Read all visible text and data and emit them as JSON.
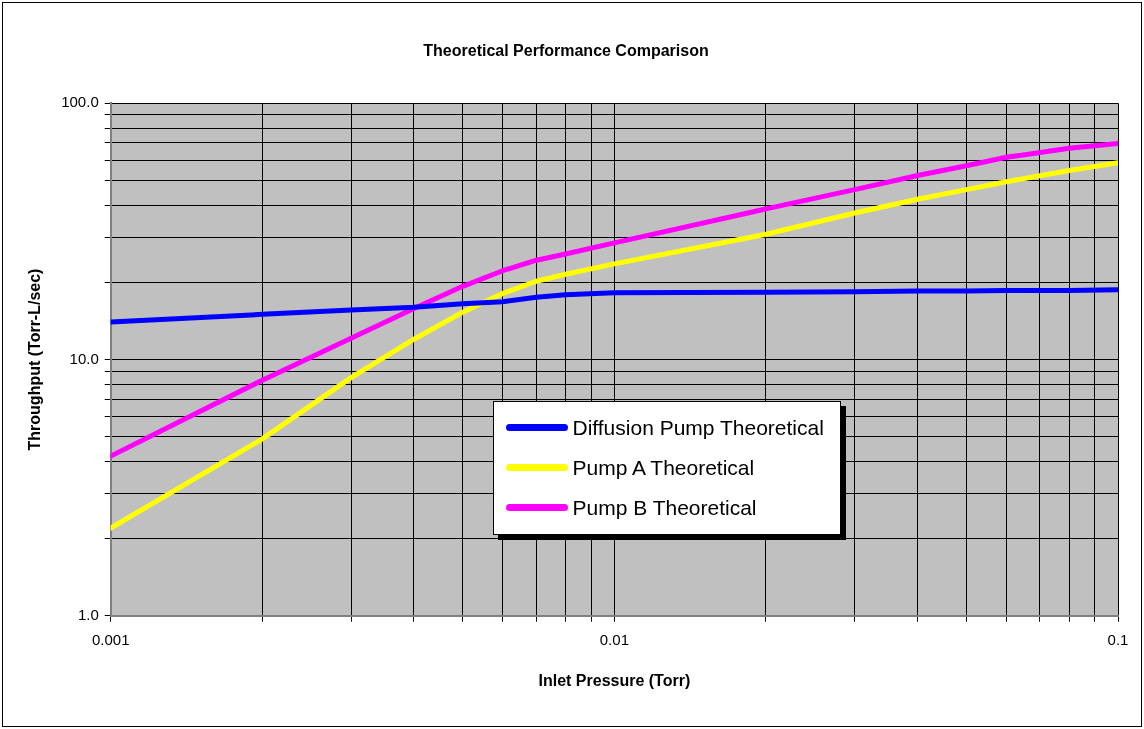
{
  "chart_data": {
    "type": "line",
    "title": "Theoretical Performance Comparison",
    "xlabel": "Inlet Pressure (Torr)",
    "ylabel": "Throughput (Torr-L/sec)",
    "log": "xy",
    "grid": true,
    "legend": "bottom",
    "xlim": [
      0.001,
      0.1
    ],
    "ylim": [
      1,
      100
    ],
    "xticks": [
      0.001,
      {
        "value": 0.002,
        "label": null
      },
      {
        "value": 0.003,
        "label": null
      },
      {
        "value": 0.004,
        "label": null
      },
      {
        "value": 0.005,
        "label": null
      },
      {
        "value": 0.006,
        "label": null
      },
      {
        "value": 0.007,
        "label": null
      },
      {
        "value": 0.008,
        "label": null
      },
      {
        "value": 0.009,
        "label": null
      },
      0.01,
      {
        "value": 0.02,
        "label": null
      },
      {
        "value": 0.03,
        "label": null
      },
      {
        "value": 0.04,
        "label": null
      },
      {
        "value": 0.05,
        "label": null
      },
      {
        "value": 0.06,
        "label": null
      },
      {
        "value": 0.07,
        "label": null
      },
      {
        "value": 0.08,
        "label": null
      },
      {
        "value": 0.09,
        "label": null
      },
      0.1
    ],
    "yticks": [
      {
        "value": 1,
        "label": "1.0"
      },
      {
        "value": 2,
        "label": null
      },
      {
        "value": 3,
        "label": null
      },
      {
        "value": 4,
        "label": null
      },
      {
        "value": 5,
        "label": null
      },
      {
        "value": 6,
        "label": null
      },
      {
        "value": 7,
        "label": null
      },
      {
        "value": 8,
        "label": null
      },
      {
        "value": 9,
        "label": null
      },
      {
        "value": 10,
        "label": "10.0"
      },
      {
        "value": 20,
        "label": null
      },
      {
        "value": 30,
        "label": null
      },
      {
        "value": 40,
        "label": null
      },
      {
        "value": 50,
        "label": null
      },
      {
        "value": 60,
        "label": null
      },
      {
        "value": 70,
        "label": null
      },
      {
        "value": 80,
        "label": null
      },
      {
        "value": 90,
        "label": null
      },
      {
        "value": 100,
        "label": "100.0"
      }
    ],
    "x": [
      0.001,
      0.002,
      0.003,
      0.004,
      0.005,
      0.006,
      0.007,
      0.008,
      0.01,
      0.02,
      0.03,
      0.04,
      0.05,
      0.06,
      0.08,
      0.1
    ],
    "series": [
      {
        "name": "Diffusion Pump Theoretical",
        "color": "#0000ff",
        "values": [
          14.0,
          15.0,
          15.6,
          16.0,
          16.5,
          16.8,
          17.5,
          17.9,
          18.2,
          18.3,
          18.4,
          18.5,
          18.5,
          18.6,
          18.6,
          18.7
        ]
      },
      {
        "name": "Pump A Theoretical",
        "color": "#ffff00",
        "values": [
          2.2,
          4.9,
          8.5,
          12.0,
          15.3,
          18.1,
          20.2,
          21.5,
          23.6,
          30.8,
          37.3,
          42.2,
          46.0,
          49.4,
          54.6,
          58.6
        ]
      },
      {
        "name": "Pump B Theoretical",
        "color": "#ff00ff",
        "values": [
          4.2,
          8.3,
          12.1,
          15.8,
          19.3,
          22.2,
          24.4,
          25.8,
          28.5,
          38.7,
          46.0,
          52.2,
          57.0,
          61.5,
          66.7,
          69.7
        ]
      }
    ]
  }
}
